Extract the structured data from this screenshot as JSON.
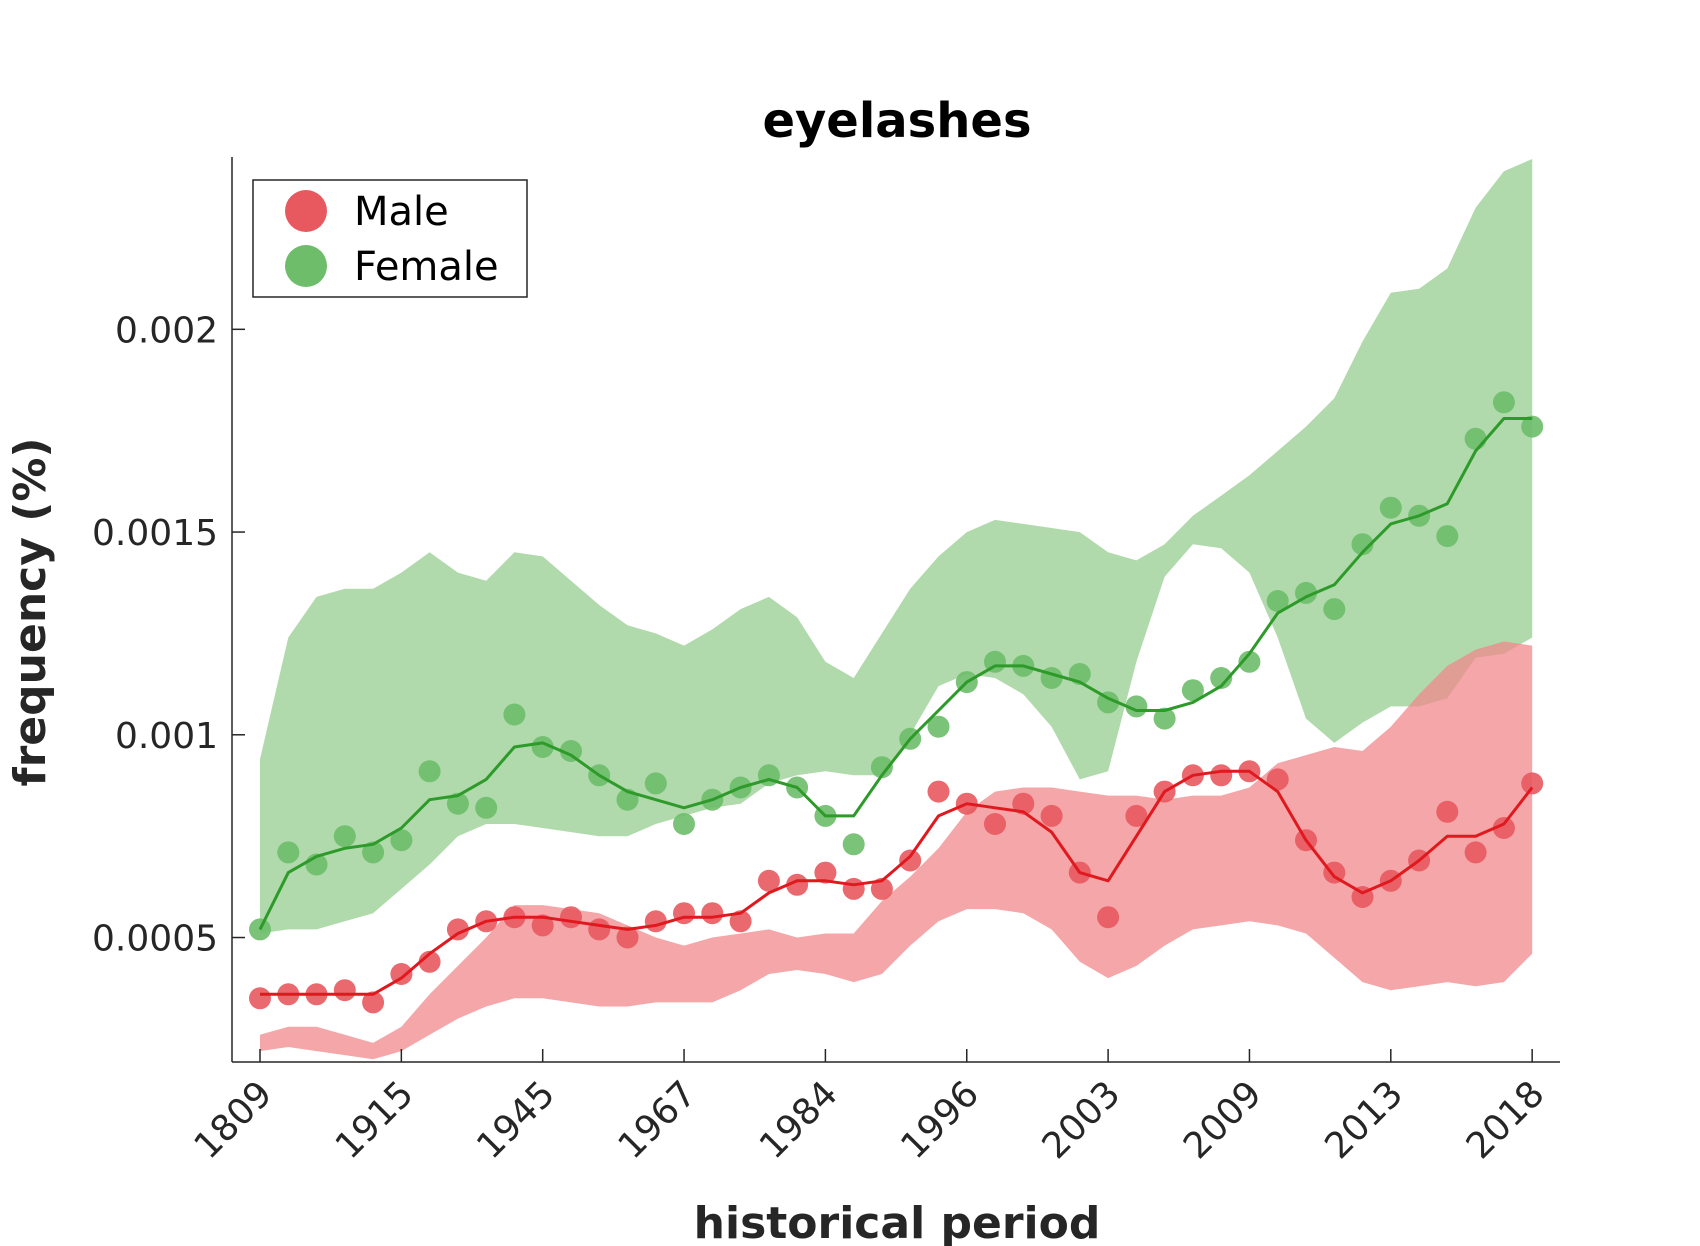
{
  "chart_data": {
    "type": "scatter",
    "title": "eyelashes",
    "xlabel": "historical period",
    "ylabel": "frequency (%)",
    "ylim": [
      0.000193,
      0.002425
    ],
    "y_ticks": [
      0.0005,
      0.001,
      0.0015,
      0.002
    ],
    "y_tick_labels": [
      "0.0005",
      "0.001",
      "0.0015",
      "0.002"
    ],
    "x_tick_labels": [
      "1809",
      "1915",
      "1945",
      "1967",
      "1984",
      "1996",
      "2003",
      "2009",
      "2013",
      "2018"
    ],
    "x_tick_positions": [
      0,
      5,
      10,
      15,
      20,
      25,
      30,
      35,
      40,
      45
    ],
    "x_count": 46,
    "grid": false,
    "legend": {
      "position": "top-left",
      "entries": [
        "Male",
        "Female"
      ]
    },
    "series": [
      {
        "name": "Male",
        "color": "#e8595f",
        "line_color": "#e0191f",
        "band_color": "#f0888b",
        "points": [
          0.00035,
          0.00036,
          0.00036,
          0.00037,
          0.00034,
          0.00041,
          0.00044,
          0.00052,
          0.00054,
          0.00055,
          0.00053,
          0.00055,
          0.00052,
          0.0005,
          0.00054,
          0.00056,
          0.00056,
          0.00054,
          0.00064,
          0.00063,
          0.00066,
          0.00062,
          0.00062,
          0.00069,
          0.00086,
          0.00083,
          0.00078,
          0.00083,
          0.0008,
          0.00066,
          0.00055,
          0.0008,
          0.00086,
          0.0009,
          0.0009,
          0.00091,
          0.00089,
          0.00074,
          0.00066,
          0.0006,
          0.00064,
          0.00069,
          0.00081,
          0.00071,
          0.00077,
          0.00088
        ],
        "trend": [
          0.00036,
          0.00036,
          0.00036,
          0.00036,
          0.00036,
          0.0004,
          0.00046,
          0.00051,
          0.00054,
          0.00055,
          0.00055,
          0.00054,
          0.00053,
          0.00052,
          0.00053,
          0.00055,
          0.00055,
          0.00056,
          0.00061,
          0.00064,
          0.00064,
          0.00063,
          0.00064,
          0.0007,
          0.0008,
          0.00083,
          0.00082,
          0.00081,
          0.00076,
          0.00066,
          0.00064,
          0.00075,
          0.00086,
          0.0009,
          0.00091,
          0.00091,
          0.00086,
          0.00074,
          0.00065,
          0.00061,
          0.00064,
          0.00069,
          0.00075,
          0.00075,
          0.00078,
          0.00087
        ],
        "band_upper": [
          0.00026,
          0.00028,
          0.00028,
          0.00026,
          0.00024,
          0.00028,
          0.00036,
          0.00043,
          0.0005,
          0.00058,
          0.00058,
          0.00057,
          0.00056,
          0.00053,
          0.0005,
          0.00048,
          0.0005,
          0.00051,
          0.00052,
          0.0005,
          0.00051,
          0.00051,
          0.00059,
          0.00065,
          0.00072,
          0.00081,
          0.00086,
          0.00087,
          0.00087,
          0.00086,
          0.00085,
          0.00085,
          0.00084,
          0.00085,
          0.00085,
          0.00087,
          0.00093,
          0.00095,
          0.00097,
          0.00096,
          0.00102,
          0.0011,
          0.00117,
          0.00121,
          0.00123,
          0.00122
        ],
        "band_lower": [
          0.00022,
          0.00023,
          0.00022,
          0.00021,
          0.0002,
          0.00022,
          0.00026,
          0.0003,
          0.00033,
          0.00035,
          0.00035,
          0.00034,
          0.00033,
          0.00033,
          0.00034,
          0.00034,
          0.00034,
          0.00037,
          0.00041,
          0.00042,
          0.00041,
          0.00039,
          0.00041,
          0.00048,
          0.00054,
          0.00057,
          0.00057,
          0.00056,
          0.00052,
          0.00044,
          0.0004,
          0.00043,
          0.00048,
          0.00052,
          0.00053,
          0.00054,
          0.00053,
          0.00051,
          0.00045,
          0.00039,
          0.00037,
          0.00038,
          0.00039,
          0.00038,
          0.00039,
          0.00046
        ]
      },
      {
        "name": "Female",
        "color": "#6dbd6a",
        "line_color": "#2e9a2a",
        "band_color": "#a7d6a2",
        "points": [
          0.00052,
          0.00071,
          0.00068,
          0.00075,
          0.00071,
          0.00074,
          0.00091,
          0.00083,
          0.00082,
          0.00105,
          0.00097,
          0.00096,
          0.0009,
          0.00084,
          0.00088,
          0.00078,
          0.00084,
          0.00087,
          0.0009,
          0.00087,
          0.0008,
          0.00073,
          0.00092,
          0.00099,
          0.00102,
          0.00113,
          0.00118,
          0.00117,
          0.00114,
          0.00115,
          0.00108,
          0.00107,
          0.00104,
          0.00111,
          0.00114,
          0.00118,
          0.00133,
          0.00135,
          0.00131,
          0.00147,
          0.00156,
          0.00154,
          0.00149,
          0.00173,
          0.00182,
          0.00176
        ],
        "trend": [
          0.00052,
          0.00066,
          0.0007,
          0.00072,
          0.00073,
          0.00077,
          0.00084,
          0.00085,
          0.00089,
          0.00097,
          0.00098,
          0.00095,
          0.0009,
          0.00086,
          0.00084,
          0.00082,
          0.00084,
          0.00087,
          0.00089,
          0.00087,
          0.0008,
          0.0008,
          0.0009,
          0.00099,
          0.00106,
          0.00113,
          0.00117,
          0.00117,
          0.00115,
          0.00113,
          0.00109,
          0.00106,
          0.00106,
          0.00108,
          0.00112,
          0.0012,
          0.0013,
          0.00134,
          0.00137,
          0.00145,
          0.00152,
          0.00154,
          0.00157,
          0.0017,
          0.00178,
          0.00178
        ],
        "band_upper": [
          0.00094,
          0.00124,
          0.00134,
          0.00136,
          0.00136,
          0.0014,
          0.00145,
          0.0014,
          0.00138,
          0.00145,
          0.00144,
          0.00138,
          0.00132,
          0.00127,
          0.00125,
          0.00122,
          0.00126,
          0.00131,
          0.00134,
          0.00129,
          0.00118,
          0.00114,
          0.00125,
          0.00136,
          0.00144,
          0.0015,
          0.00153,
          0.00152,
          0.00151,
          0.0015,
          0.00145,
          0.00143,
          0.00147,
          0.00154,
          0.00159,
          0.00164,
          0.0017,
          0.00176,
          0.00183,
          0.00197,
          0.00209,
          0.0021,
          0.00215,
          0.0023,
          0.00239,
          0.00242
        ],
        "band_lower": [
          0.00051,
          0.00052,
          0.00052,
          0.00054,
          0.00056,
          0.00062,
          0.00068,
          0.00075,
          0.00078,
          0.00078,
          0.00077,
          0.00076,
          0.00075,
          0.00075,
          0.00078,
          0.0008,
          0.00082,
          0.00083,
          0.00088,
          0.0009,
          0.00091,
          0.0009,
          0.0009,
          0.001,
          0.00112,
          0.00115,
          0.00114,
          0.0011,
          0.00102,
          0.00089,
          0.00091,
          0.00118,
          0.00139,
          0.00147,
          0.00146,
          0.0014,
          0.00124,
          0.00104,
          0.00098,
          0.00103,
          0.00107,
          0.00107,
          0.00109,
          0.00119,
          0.0012,
          0.00124
        ]
      }
    ]
  }
}
